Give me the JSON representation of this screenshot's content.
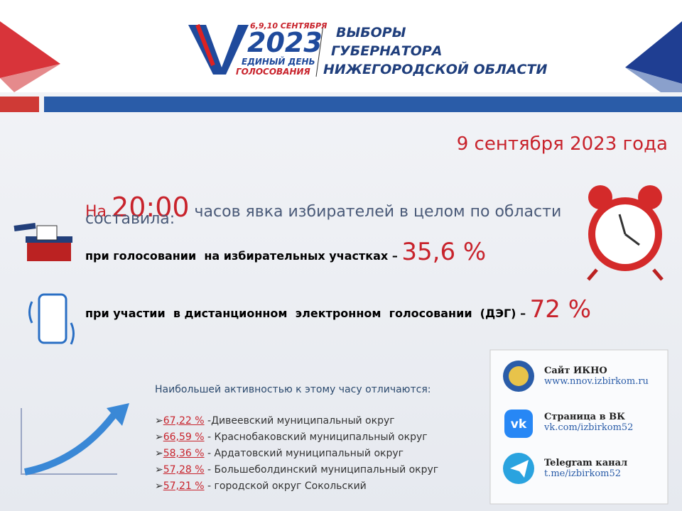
{
  "header": {
    "logo": {
      "dates": "6,9,10 СЕНТЯБРЯ",
      "year": "2023",
      "line1": "ЕДИНЫЙ ДЕНЬ",
      "line2": "ГОЛОСОВАНИЯ"
    },
    "title": [
      "ВЫБОРЫ",
      "ГУБЕРНАТОРА",
      "НИЖЕГОРОДСКОЙ ОБЛАСТИ"
    ]
  },
  "date": "9 сентября 2023 года",
  "intro": {
    "prefix": "На",
    "time": "20:00",
    "rest": "часов явка избирателей в целом по области",
    "line2": "составила:"
  },
  "turnout": [
    {
      "label": "при голосовании  на избирательных участках",
      "dash": "–",
      "value": "35,6 %"
    },
    {
      "label": "при участии  в дистанционном  электронном  голосовании  (ДЭГ)",
      "dash": "–",
      "value": "72 %"
    }
  ],
  "activity": {
    "heading": "Наибольшей активностью к этому часу отличаются:",
    "items": [
      {
        "value": "67,22 %",
        "text": " -Дивеевский муниципальный округ"
      },
      {
        "value": "66,59 %",
        "text": " - Краснобаковский муниципальный округ"
      },
      {
        "value": "58,36 %",
        "text": " - Ардатовский муниципальный округ"
      },
      {
        "value": "57,28 %",
        "text": " - Большеболдинский муниципальный округ"
      },
      {
        "value": "57,21 %",
        "text": " - городской округ Сокольский"
      }
    ]
  },
  "contacts": [
    {
      "title": "Сайт ИКНО",
      "link": "www.nnov.izbirkom.ru"
    },
    {
      "title": "Страница в ВК",
      "link": "vk.com/izbirkom52"
    },
    {
      "title": "Telegram канал",
      "link": "t.me/izbirkom52"
    }
  ]
}
